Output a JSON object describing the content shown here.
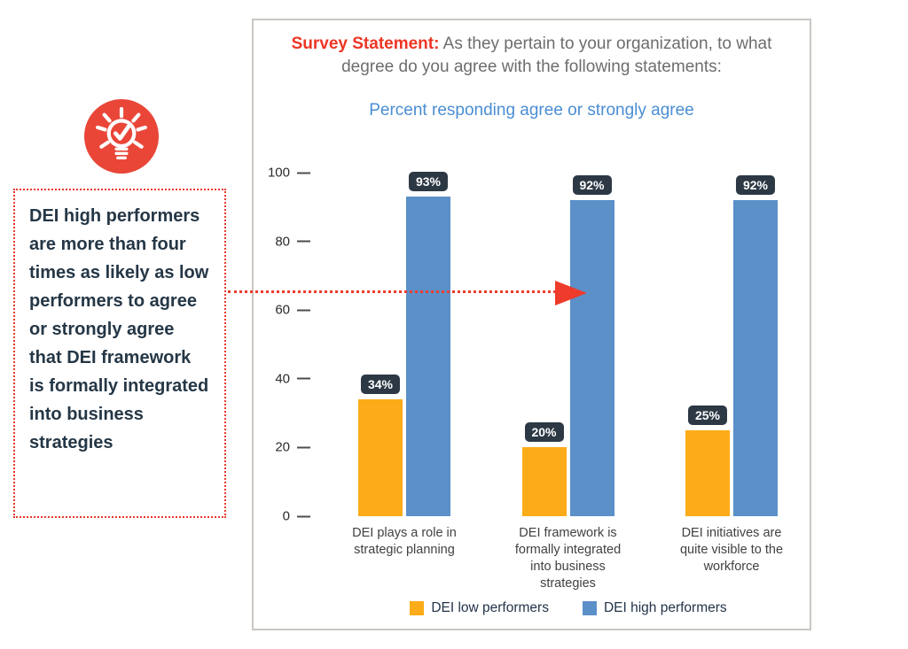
{
  "survey": {
    "label": "Survey Statement:",
    "text": " As they pertain to your organization, to what degree do you agree with the following statements:"
  },
  "callout": {
    "text": "DEI high performers are more than four times as likely as low performers to agree or strongly agree that DEI framework is formally integrated into business strategies"
  },
  "icon": {
    "name": "lightbulb-check-icon",
    "background": "#E94638"
  },
  "colors": {
    "accent_red": "#EE3524",
    "title_gray": "#6D6D6D",
    "subtitle_blue": "#4A8ED3",
    "value_label_bg": "#2C3844",
    "low_performer_yellow": "#FBAC18",
    "high_performer_blue": "#5B90C9"
  },
  "chart_data": {
    "type": "bar",
    "title": "Percent responding agree or strongly agree",
    "categories": [
      "DEI plays a role in strategic planning",
      "DEI framework is formally integrated into business strategies",
      "DEI initiatives are quite visible to the workforce"
    ],
    "series": [
      {
        "name": "DEI low performers",
        "color": "#FBAC18",
        "values": [
          34,
          20,
          25
        ]
      },
      {
        "name": "DEI high performers",
        "color": "#5B90C9",
        "values": [
          93,
          92,
          92
        ]
      }
    ],
    "value_suffix": "%",
    "y_ticks": [
      0,
      20,
      40,
      60,
      80,
      100
    ],
    "ylim": [
      0,
      100
    ],
    "grid": false,
    "legend_position": "bottom"
  }
}
